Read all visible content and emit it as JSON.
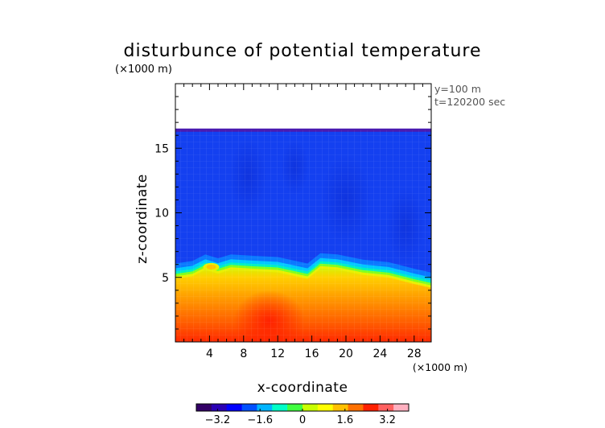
{
  "chart_data": {
    "type": "heatmap",
    "title": "disturbunce of potential temperature",
    "y_unit": "(×1000 m)",
    "x_unit": "(×1000 m)",
    "xlabel": "x-coordinate",
    "ylabel": "z-coordinate",
    "annotations": [
      "y=100 m",
      "t=120200 sec"
    ],
    "xlim": [
      0,
      30
    ],
    "ylim": [
      0,
      20
    ],
    "x_ticks": [
      4,
      8,
      12,
      16,
      20,
      24,
      28
    ],
    "y_ticks": [
      5,
      10,
      15
    ],
    "data_top_km": 16.4,
    "interface_km": [
      {
        "x": 0,
        "z": 5.2
      },
      {
        "x": 2,
        "z": 5.4
      },
      {
        "x": 3.5,
        "z": 5.9
      },
      {
        "x": 5,
        "z": 5.6
      },
      {
        "x": 6.5,
        "z": 5.9
      },
      {
        "x": 9,
        "z": 5.8
      },
      {
        "x": 12,
        "z": 5.7
      },
      {
        "x": 15.5,
        "z": 5.2
      },
      {
        "x": 17,
        "z": 6.0
      },
      {
        "x": 19,
        "z": 5.9
      },
      {
        "x": 22,
        "z": 5.5
      },
      {
        "x": 25,
        "z": 5.3
      },
      {
        "x": 28,
        "z": 4.8
      },
      {
        "x": 30,
        "z": 4.5
      }
    ],
    "colorbar": {
      "ticks": [
        "−3.2",
        "−1.6",
        "0",
        "1.6",
        "3.2"
      ],
      "range": [
        -4,
        4
      ],
      "colors": [
        "#330066",
        "#2a00b4",
        "#0000ff",
        "#0050ff",
        "#00b4ff",
        "#00ffc8",
        "#40ff40",
        "#c8ff00",
        "#ffff00",
        "#ffc000",
        "#ff7000",
        "#ff2000",
        "#ff6060",
        "#ffb0c0"
      ]
    }
  }
}
